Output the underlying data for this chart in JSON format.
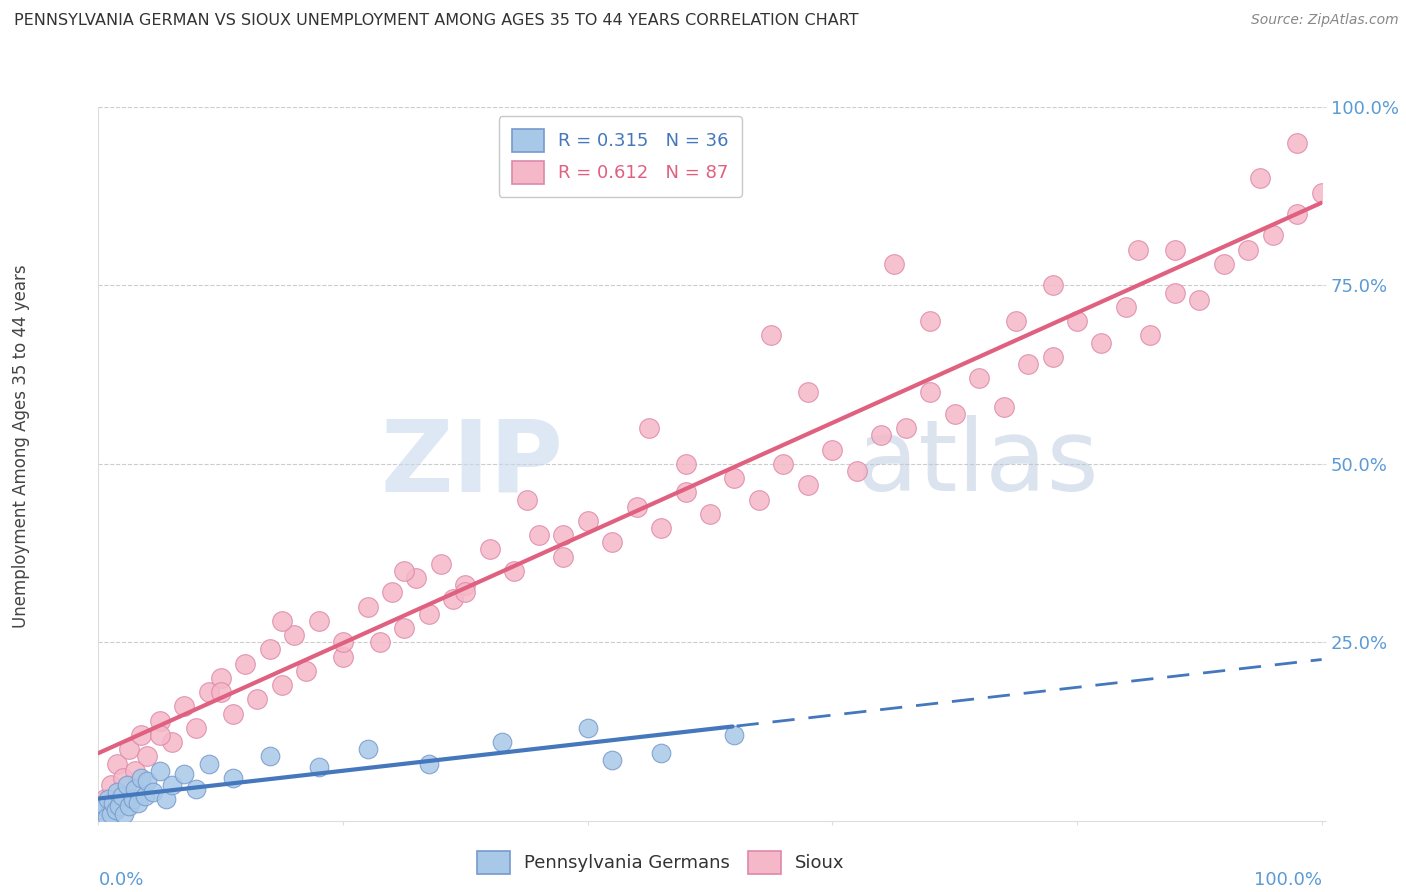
{
  "title": "PENNSYLVANIA GERMAN VS SIOUX UNEMPLOYMENT AMONG AGES 35 TO 44 YEARS CORRELATION CHART",
  "source": "Source: ZipAtlas.com",
  "ylabel": "Unemployment Among Ages 35 to 44 years",
  "legend1_r": "R = 0.315",
  "legend1_n": "N = 36",
  "legend2_r": "R = 0.612",
  "legend2_n": "N = 87",
  "blue_color": "#a8c8e8",
  "pink_color": "#f5b8c8",
  "blue_line_color": "#4477bb",
  "pink_line_color": "#e06080",
  "blue_edge_color": "#7799cc",
  "pink_edge_color": "#dd88aa",
  "bg_color": "#ffffff",
  "grid_color": "#cccccc",
  "tick_color": "#5b9bd5",
  "title_color": "#333333",
  "source_color": "#888888",
  "watermark_zip_color": "#c8d8ee",
  "watermark_atlas_color": "#b8c8de",
  "blue_scatter_x": [
    0.3,
    0.5,
    0.7,
    0.8,
    1.0,
    1.2,
    1.4,
    1.5,
    1.7,
    1.9,
    2.1,
    2.3,
    2.5,
    2.8,
    3.0,
    3.2,
    3.5,
    3.8,
    4.0,
    4.5,
    5.0,
    5.5,
    6.0,
    7.0,
    8.0,
    9.0,
    11.0,
    14.0,
    18.0,
    22.0,
    27.0,
    33.0,
    40.0,
    42.0,
    46.0,
    52.0
  ],
  "blue_scatter_y": [
    1.5,
    2.0,
    0.5,
    3.0,
    1.0,
    2.5,
    1.5,
    4.0,
    2.0,
    3.5,
    1.0,
    5.0,
    2.0,
    3.0,
    4.5,
    2.5,
    6.0,
    3.5,
    5.5,
    4.0,
    7.0,
    3.0,
    5.0,
    6.5,
    4.5,
    8.0,
    6.0,
    9.0,
    7.5,
    10.0,
    8.0,
    11.0,
    13.0,
    8.5,
    9.5,
    12.0
  ],
  "pink_scatter_x": [
    0.5,
    1.0,
    1.5,
    2.0,
    2.5,
    3.0,
    3.5,
    4.0,
    5.0,
    6.0,
    7.0,
    8.0,
    9.0,
    10.0,
    11.0,
    12.0,
    13.0,
    14.0,
    15.0,
    16.0,
    17.0,
    18.0,
    20.0,
    22.0,
    23.0,
    24.0,
    25.0,
    26.0,
    27.0,
    28.0,
    29.0,
    30.0,
    32.0,
    34.0,
    36.0,
    38.0,
    40.0,
    42.0,
    44.0,
    46.0,
    48.0,
    50.0,
    52.0,
    54.0,
    56.0,
    58.0,
    60.0,
    62.0,
    64.0,
    66.0,
    68.0,
    70.0,
    72.0,
    74.0,
    76.0,
    78.0,
    80.0,
    82.0,
    84.0,
    86.0,
    88.0,
    90.0,
    92.0,
    94.0,
    96.0,
    98.0,
    100.0,
    55.0,
    65.0,
    45.0,
    35.0,
    25.0,
    15.0,
    75.0,
    85.0,
    95.0,
    38.0,
    48.0,
    58.0,
    68.0,
    78.0,
    88.0,
    98.0,
    30.0,
    20.0,
    10.0,
    5.0
  ],
  "pink_scatter_y": [
    3.0,
    5.0,
    8.0,
    6.0,
    10.0,
    7.0,
    12.0,
    9.0,
    14.0,
    11.0,
    16.0,
    13.0,
    18.0,
    20.0,
    15.0,
    22.0,
    17.0,
    24.0,
    19.0,
    26.0,
    21.0,
    28.0,
    23.0,
    30.0,
    25.0,
    32.0,
    27.0,
    34.0,
    29.0,
    36.0,
    31.0,
    33.0,
    38.0,
    35.0,
    40.0,
    37.0,
    42.0,
    39.0,
    44.0,
    41.0,
    46.0,
    43.0,
    48.0,
    45.0,
    50.0,
    47.0,
    52.0,
    49.0,
    54.0,
    55.0,
    60.0,
    57.0,
    62.0,
    58.0,
    64.0,
    65.0,
    70.0,
    67.0,
    72.0,
    68.0,
    74.0,
    73.0,
    78.0,
    80.0,
    82.0,
    85.0,
    88.0,
    68.0,
    78.0,
    55.0,
    45.0,
    35.0,
    28.0,
    70.0,
    80.0,
    90.0,
    40.0,
    50.0,
    60.0,
    70.0,
    75.0,
    80.0,
    95.0,
    32.0,
    25.0,
    18.0,
    12.0
  ]
}
